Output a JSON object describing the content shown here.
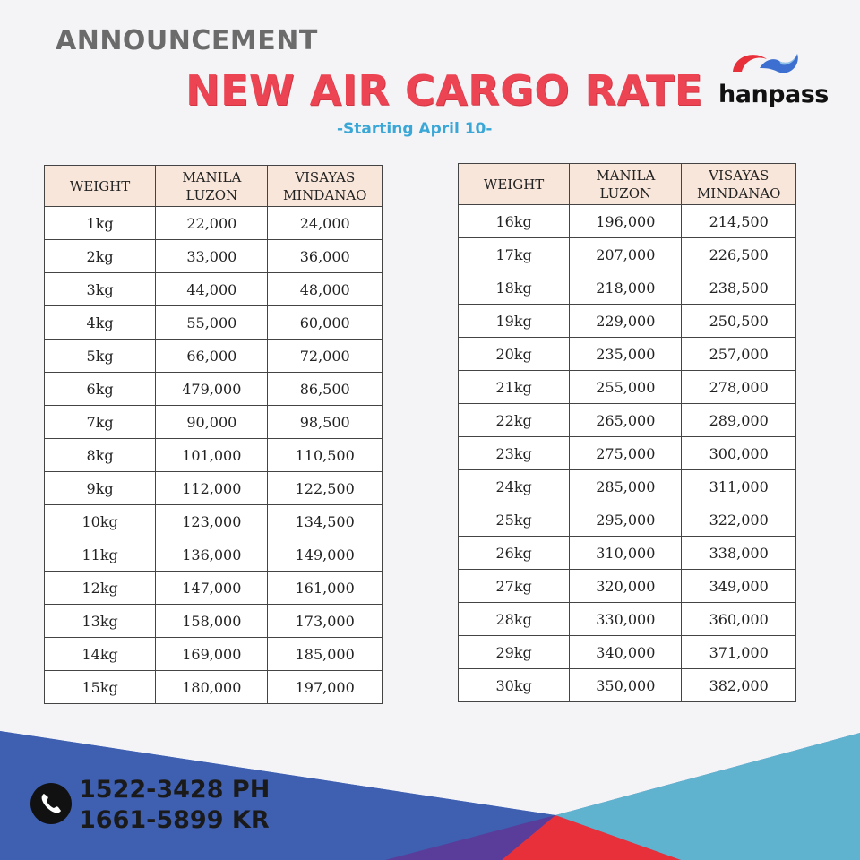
{
  "header": {
    "announcement": "ANNOUNCEMENT",
    "title": "NEW AIR CARGO RATE",
    "subtitle": "-Starting April 10-"
  },
  "brand": {
    "name": "hanpass",
    "colors": {
      "red": "#e8303b",
      "blue": "#3d6fd0",
      "light_blue": "#5fb8de"
    }
  },
  "table": {
    "headers": {
      "weight": "WEIGHT",
      "manila_line1": "MANILA",
      "manila_line2": "LUZON",
      "visayas_line1": "VISAYAS",
      "visayas_line2": "MINDANAO"
    },
    "left_rows": [
      {
        "weight": "1kg",
        "manila": "22,000",
        "visayas": "24,000"
      },
      {
        "weight": "2kg",
        "manila": "33,000",
        "visayas": "36,000"
      },
      {
        "weight": "3kg",
        "manila": "44,000",
        "visayas": "48,000"
      },
      {
        "weight": "4kg",
        "manila": "55,000",
        "visayas": "60,000"
      },
      {
        "weight": "5kg",
        "manila": "66,000",
        "visayas": "72,000"
      },
      {
        "weight": "6kg",
        "manila": "479,000",
        "visayas": "86,500"
      },
      {
        "weight": "7kg",
        "manila": "90,000",
        "visayas": "98,500"
      },
      {
        "weight": "8kg",
        "manila": "101,000",
        "visayas": "110,500"
      },
      {
        "weight": "9kg",
        "manila": "112,000",
        "visayas": "122,500"
      },
      {
        "weight": "10kg",
        "manila": "123,000",
        "visayas": "134,500"
      },
      {
        "weight": "11kg",
        "manila": "136,000",
        "visayas": "149,000"
      },
      {
        "weight": "12kg",
        "manila": "147,000",
        "visayas": "161,000"
      },
      {
        "weight": "13kg",
        "manila": "158,000",
        "visayas": "173,000"
      },
      {
        "weight": "14kg",
        "manila": "169,000",
        "visayas": "185,000"
      },
      {
        "weight": "15kg",
        "manila": "180,000",
        "visayas": "197,000"
      }
    ],
    "right_rows": [
      {
        "weight": "16kg",
        "manila": "196,000",
        "visayas": "214,500"
      },
      {
        "weight": "17kg",
        "manila": "207,000",
        "visayas": "226,500"
      },
      {
        "weight": "18kg",
        "manila": "218,000",
        "visayas": "238,500"
      },
      {
        "weight": "19kg",
        "manila": "229,000",
        "visayas": "250,500"
      },
      {
        "weight": "20kg",
        "manila": "235,000",
        "visayas": "257,000"
      },
      {
        "weight": "21kg",
        "manila": "255,000",
        "visayas": "278,000"
      },
      {
        "weight": "22kg",
        "manila": "265,000",
        "visayas": "289,000"
      },
      {
        "weight": "23kg",
        "manila": "275,000",
        "visayas": "300,000"
      },
      {
        "weight": "24kg",
        "manila": "285,000",
        "visayas": "311,000"
      },
      {
        "weight": "25kg",
        "manila": "295,000",
        "visayas": "322,000"
      },
      {
        "weight": "26kg",
        "manila": "310,000",
        "visayas": "338,000"
      },
      {
        "weight": "27kg",
        "manila": "320,000",
        "visayas": "349,000"
      },
      {
        "weight": "28kg",
        "manila": "330,000",
        "visayas": "360,000"
      },
      {
        "weight": "29kg",
        "manila": "340,000",
        "visayas": "371,000"
      },
      {
        "weight": "30kg",
        "manila": "350,000",
        "visayas": "382,000"
      }
    ]
  },
  "contact": {
    "icon": "phone-icon",
    "phone_ph": "1522-3428 PH",
    "phone_kr": "1661-5899 KR"
  }
}
